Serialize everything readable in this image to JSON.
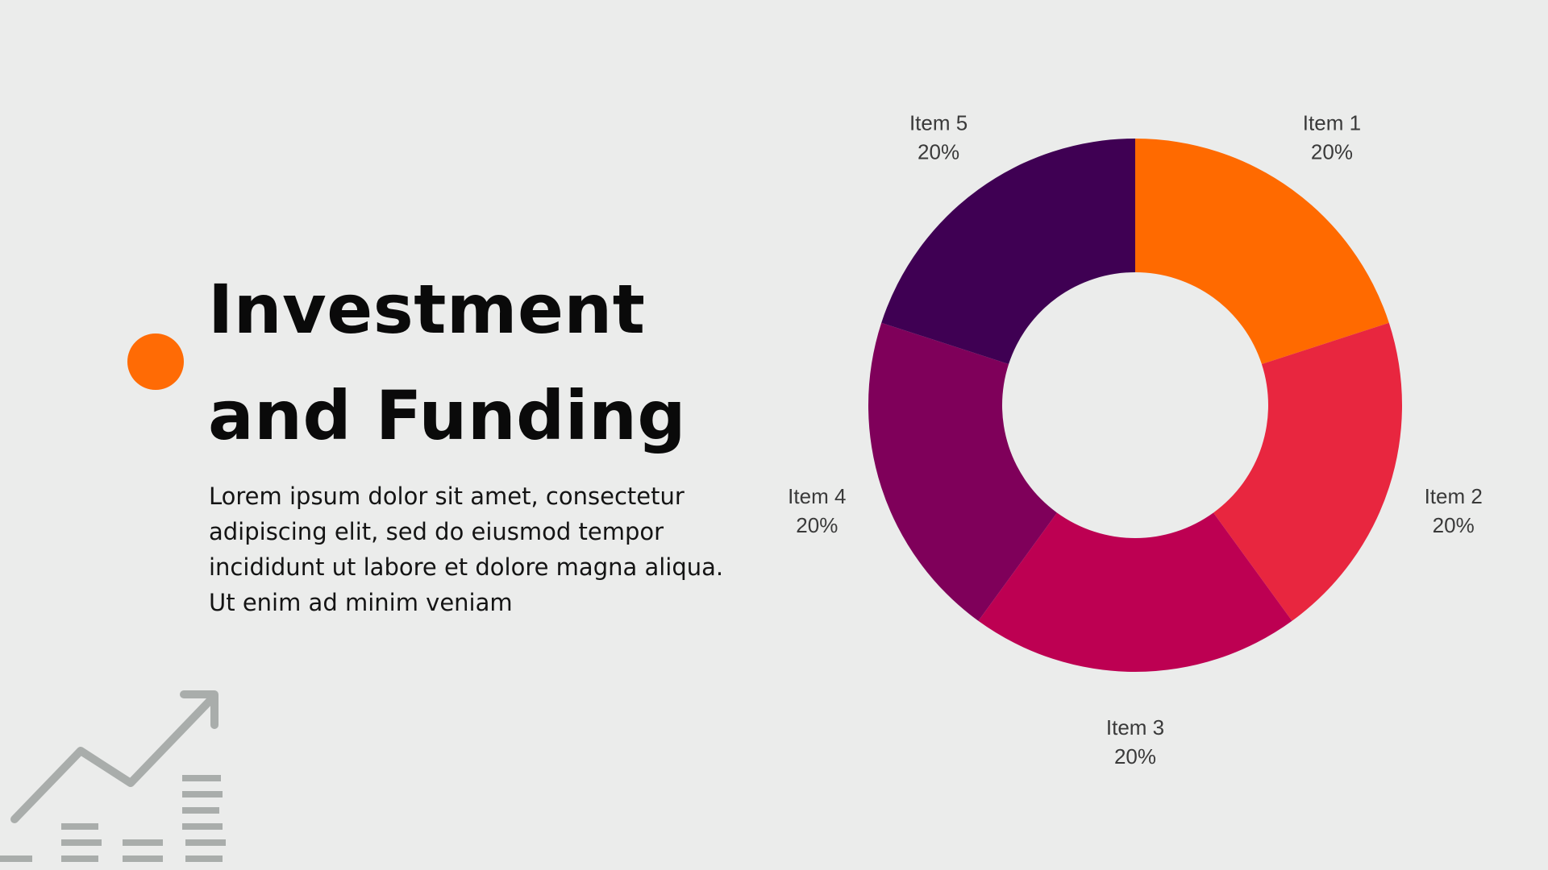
{
  "title": {
    "line1": "Investment",
    "line2": "and Funding"
  },
  "body": {
    "lines": [
      "Lorem ipsum dolor sit amet, consectetur",
      "adipiscing elit, sed do eiusmod tempor",
      "incididunt ut labore et dolore magna aliqua.",
      "Ut enim ad minim veniam"
    ]
  },
  "colors": {
    "accent": "#ff6b05",
    "background": "#ebeceb",
    "decoration": "#a9adab"
  },
  "icons": {
    "accent": "orange-circle",
    "decoration": "growth-chart-arrow-icon"
  },
  "chart_data": {
    "type": "pie",
    "style": "donut",
    "labels": [
      "Item 1",
      "Item 2",
      "Item 3",
      "Item 4",
      "Item 5"
    ],
    "values": [
      20,
      20,
      20,
      20,
      20
    ],
    "value_labels": [
      "20%",
      "20%",
      "20%",
      "20%",
      "20%"
    ],
    "colors": [
      "#ff6a00",
      "#e8263f",
      "#bd0052",
      "#7f005a",
      "#3f0053"
    ],
    "legend": "none",
    "data_labels": "outside"
  }
}
